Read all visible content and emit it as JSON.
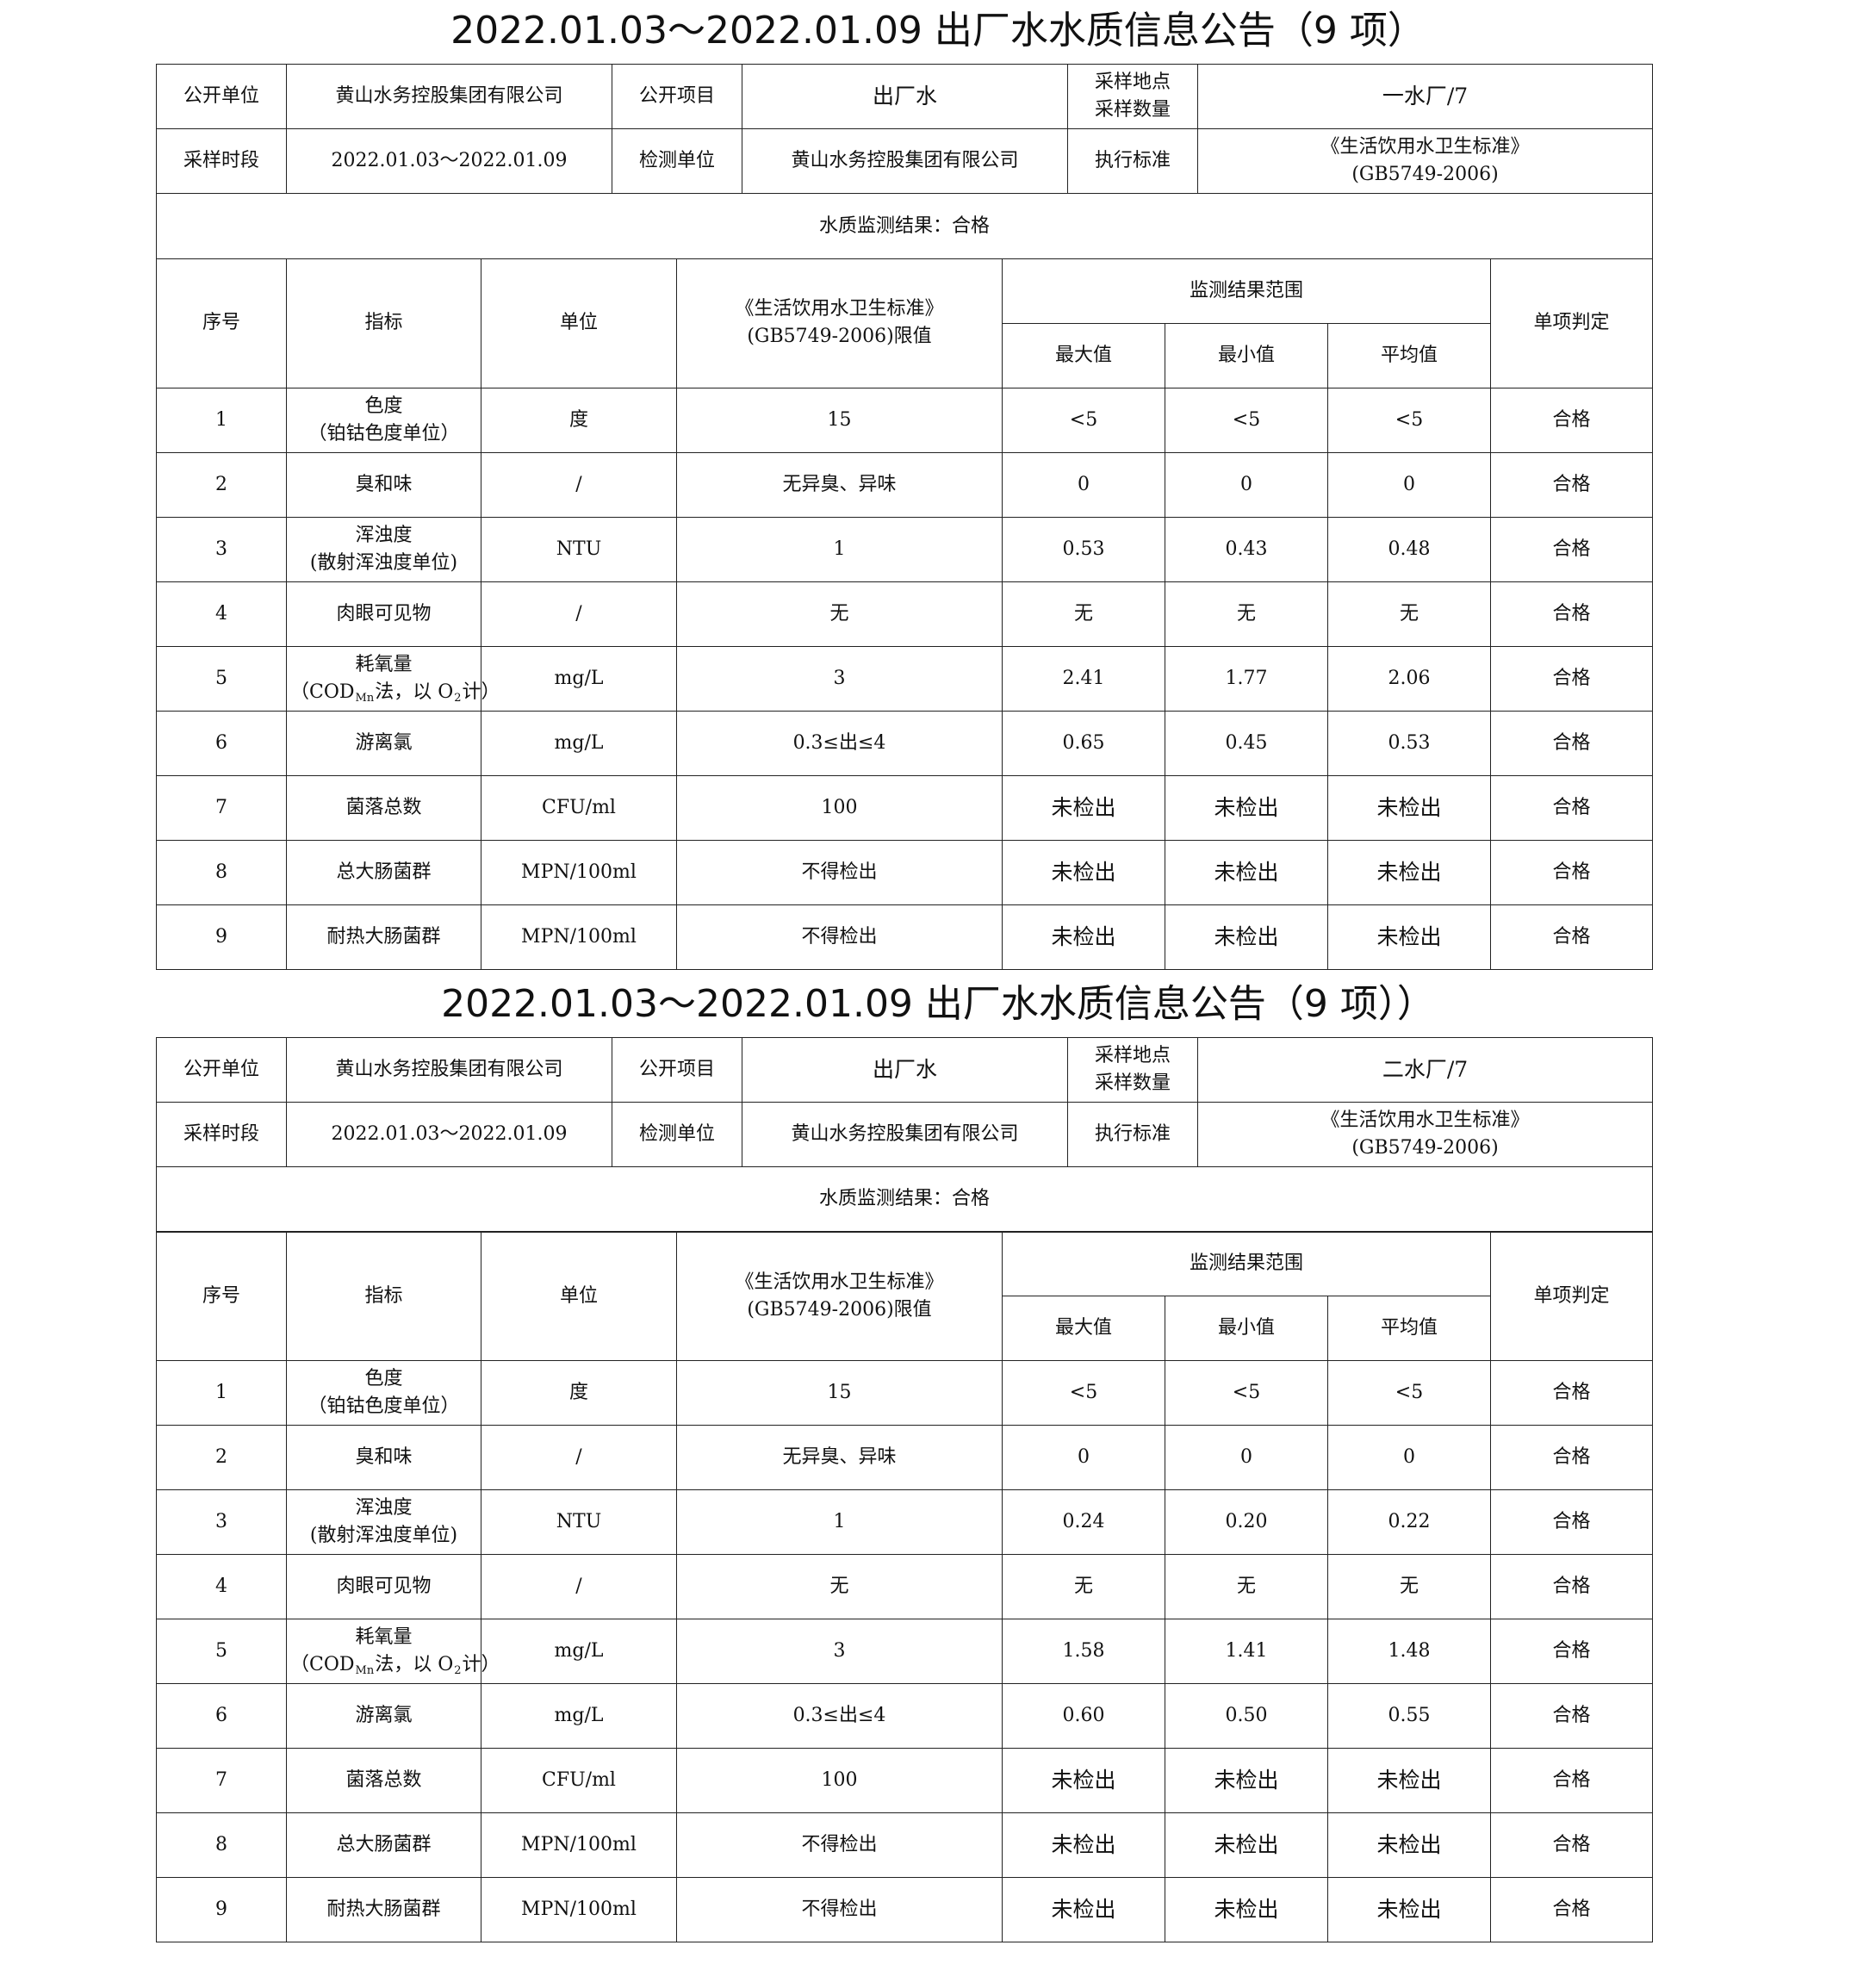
{
  "reports": [
    {
      "title": "2022.01.03～2022.01.09 出厂水水质信息公告（9 项）",
      "info": {
        "unit_label": "公开单位",
        "unit_value": "黄山水务控股集团有限公司",
        "item_label": "公开项目",
        "item_value": "出厂水",
        "site_label_1": "采样地点",
        "site_label_2": "采样数量",
        "site_value": "一水厂/7",
        "period_label": "采样时段",
        "period_value": "2022.01.03～2022.01.09",
        "lab_label": "检测单位",
        "lab_value": "黄山水务控股集团有限公司",
        "std_label": "执行标准",
        "std_value_1": "《生活饮用水卫生标准》",
        "std_value_2": "(GB5749-2006)",
        "result": "水质监测结果：合格"
      },
      "headers": {
        "no": "序号",
        "index": "指标",
        "unit": "单位",
        "limit_1": "《生活饮用水卫生标准》",
        "limit_2": "(GB5749-2006)限值",
        "range": "监测结果范围",
        "max": "最大值",
        "min": "最小值",
        "avg": "平均值",
        "judge": "单项判定"
      },
      "rows": [
        {
          "no": "1",
          "name": [
            "色度",
            "（铂钴色度单位）"
          ],
          "unit": "度",
          "limit": "15",
          "max": "<5",
          "min": "<5",
          "avg": "<5",
          "judge": "合格"
        },
        {
          "no": "2",
          "name": [
            "臭和味"
          ],
          "unit": "/",
          "limit": "无异臭、异味",
          "max": "0",
          "min": "0",
          "avg": "0",
          "judge": "合格"
        },
        {
          "no": "3",
          "name": [
            "浑浊度",
            "(散射浑浊度单位)"
          ],
          "unit": "NTU",
          "limit": "1",
          "max": "0.53",
          "min": "0.43",
          "avg": "0.48",
          "judge": "合格"
        },
        {
          "no": "4",
          "name": [
            "肉眼可见物"
          ],
          "unit": "/",
          "limit": "无",
          "max": "无",
          "min": "无",
          "avg": "无",
          "judge": "合格"
        },
        {
          "no": "5",
          "name": [
            "耗氧量",
            "COD"
          ],
          "unit": "mg/L",
          "limit": "3",
          "max": "2.41",
          "min": "1.77",
          "avg": "2.06",
          "judge": "合格"
        },
        {
          "no": "6",
          "name": [
            "游离氯"
          ],
          "unit": "mg/L",
          "limit": "0.3≤出≤4",
          "max": "0.65",
          "min": "0.45",
          "avg": "0.53",
          "judge": "合格"
        },
        {
          "no": "7",
          "name": [
            "菌落总数"
          ],
          "unit": "CFU/ml",
          "limit": "100",
          "max": "未检出",
          "min": "未检出",
          "avg": "未检出",
          "judge": "合格"
        },
        {
          "no": "8",
          "name": [
            "总大肠菌群"
          ],
          "unit": "MPN/100ml",
          "limit": "不得检出",
          "max": "未检出",
          "min": "未检出",
          "avg": "未检出",
          "judge": "合格"
        },
        {
          "no": "9",
          "name": [
            "耐热大肠菌群"
          ],
          "unit": "MPN/100ml",
          "limit": "不得检出",
          "max": "未检出",
          "min": "未检出",
          "avg": "未检出",
          "judge": "合格"
        }
      ]
    },
    {
      "title": "2022.01.03～2022.01.09 出厂水水质信息公告（9 项））",
      "info": {
        "unit_label": "公开单位",
        "unit_value": "黄山水务控股集团有限公司",
        "item_label": "公开项目",
        "item_value": "出厂水",
        "site_label_1": "采样地点",
        "site_label_2": "采样数量",
        "site_value": "二水厂/7",
        "period_label": "采样时段",
        "period_value": "2022.01.03～2022.01.09",
        "lab_label": "检测单位",
        "lab_value": "黄山水务控股集团有限公司",
        "std_label": "执行标准",
        "std_value_1": "《生活饮用水卫生标准》",
        "std_value_2": "(GB5749-2006)",
        "result": "水质监测结果：合格"
      },
      "headers": {
        "no": "序号",
        "index": "指标",
        "unit": "单位",
        "limit_1": "《生活饮用水卫生标准》",
        "limit_2": "(GB5749-2006)限值",
        "range": "监测结果范围",
        "max": "最大值",
        "min": "最小值",
        "avg": "平均值",
        "judge": "单项判定"
      },
      "rows": [
        {
          "no": "1",
          "name": [
            "色度",
            "（铂钴色度单位）"
          ],
          "unit": "度",
          "limit": "15",
          "max": "<5",
          "min": "<5",
          "avg": "<5",
          "judge": "合格"
        },
        {
          "no": "2",
          "name": [
            "臭和味"
          ],
          "unit": "/",
          "limit": "无异臭、异味",
          "max": "0",
          "min": "0",
          "avg": "0",
          "judge": "合格"
        },
        {
          "no": "3",
          "name": [
            "浑浊度",
            "(散射浑浊度单位)"
          ],
          "unit": "NTU",
          "limit": "1",
          "max": "0.24",
          "min": "0.20",
          "avg": "0.22",
          "judge": "合格"
        },
        {
          "no": "4",
          "name": [
            "肉眼可见物"
          ],
          "unit": "/",
          "limit": "无",
          "max": "无",
          "min": "无",
          "avg": "无",
          "judge": "合格"
        },
        {
          "no": "5",
          "name": [
            "耗氧量",
            "COD"
          ],
          "unit": "mg/L",
          "limit": "3",
          "max": "1.58",
          "min": "1.41",
          "avg": "1.48",
          "judge": "合格"
        },
        {
          "no": "6",
          "name": [
            "游离氯"
          ],
          "unit": "mg/L",
          "limit": "0.3≤出≤4",
          "max": "0.60",
          "min": "0.50",
          "avg": "0.55",
          "judge": "合格"
        },
        {
          "no": "7",
          "name": [
            "菌落总数"
          ],
          "unit": "CFU/ml",
          "limit": "100",
          "max": "未检出",
          "min": "未检出",
          "avg": "未检出",
          "judge": "合格"
        },
        {
          "no": "8",
          "name": [
            "总大肠菌群"
          ],
          "unit": "MPN/100ml",
          "limit": "不得检出",
          "max": "未检出",
          "min": "未检出",
          "avg": "未检出",
          "judge": "合格"
        },
        {
          "no": "9",
          "name": [
            "耐热大肠菌群"
          ],
          "unit": "MPN/100ml",
          "limit": "不得检出",
          "max": "未检出",
          "min": "未检出",
          "avg": "未检出",
          "judge": "合格"
        }
      ]
    }
  ],
  "cod_parts": {
    "open": "（COD",
    "sub1": "Mn",
    "mid": "法，以 O",
    "sub2": "2",
    "close": "计）"
  }
}
